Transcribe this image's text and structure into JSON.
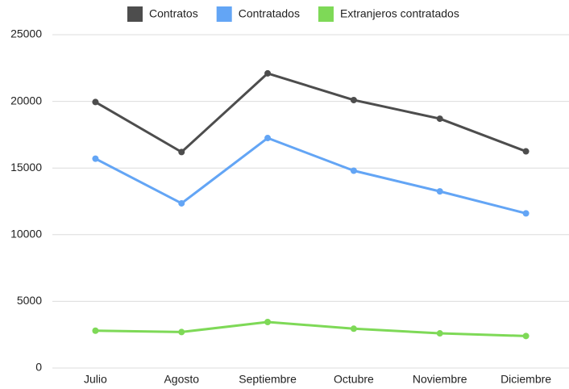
{
  "chart_data": {
    "type": "line",
    "categories": [
      "Julio",
      "Agosto",
      "Septiembre",
      "Octubre",
      "Noviembre",
      "Diciembre"
    ],
    "series": [
      {
        "name": "Contratos",
        "color": "#4d4d4d",
        "values": [
          19950,
          16200,
          22100,
          20100,
          18700,
          16250
        ]
      },
      {
        "name": "Contratados",
        "color": "#63a5f5",
        "values": [
          15700,
          12350,
          17250,
          14800,
          13250,
          11600
        ]
      },
      {
        "name": "Extranjeros contratados",
        "color": "#7ed957",
        "values": [
          2800,
          2700,
          3450,
          2950,
          2600,
          2400
        ]
      }
    ],
    "ylim": [
      0,
      25000
    ],
    "yticks": [
      0,
      5000,
      10000,
      15000,
      20000,
      25000
    ],
    "grid": true,
    "legend": "top"
  }
}
